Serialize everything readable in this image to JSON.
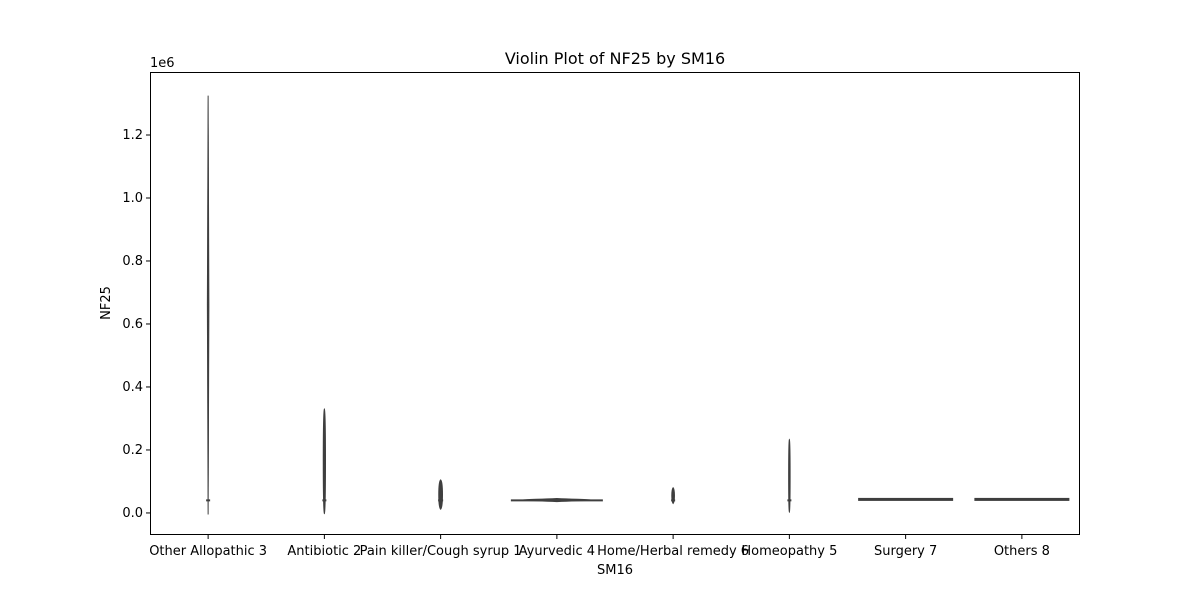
{
  "chart_data": {
    "type": "violin",
    "title": "Violin Plot of NF25 by SM16",
    "xlabel": "SM16",
    "ylabel": "NF25",
    "y_offset_label": "1e6",
    "y_scale_factor": 1000000,
    "ylim": [
      -0.07,
      1.4
    ],
    "yticks": [
      0.0,
      0.2,
      0.4,
      0.6,
      0.8,
      1.0,
      1.2
    ],
    "ytick_labels": [
      "0.0",
      "0.2",
      "0.4",
      "0.6",
      "0.8",
      "1.0",
      "1.2"
    ],
    "grid": false,
    "legend": "none",
    "categories": [
      "Other Allopathic 3",
      "Antibiotic 2",
      "Pain killer/Cough syrup 1",
      "Ayurvedic 4",
      "Home/Herbal remedy 6",
      "Homeopathy 5",
      "Surgery 7",
      "Others 8"
    ],
    "violins": [
      {
        "category": "Other Allopathic 3",
        "min": -0.005,
        "max": 1.325,
        "median": 0.04,
        "max_halfwidth": 1
      },
      {
        "category": "Antibiotic 2",
        "min": -0.002,
        "max": 0.33,
        "median": 0.04,
        "max_halfwidth": 1.5
      },
      {
        "category": "Pain killer/Cough syrup 1",
        "min": 0.012,
        "max": 0.105,
        "median": 0.04,
        "max_halfwidth": 2.5
      },
      {
        "category": "Ayurvedic 4",
        "min": 0.036,
        "max": 0.046,
        "median": 0.04,
        "max_halfwidth": 46
      },
      {
        "category": "Home/Herbal remedy 6",
        "min": 0.03,
        "max": 0.08,
        "median": 0.04,
        "max_halfwidth": 1.8
      },
      {
        "category": "Homeopathy 5",
        "min": 0.003,
        "max": 0.233,
        "median": 0.04,
        "max_halfwidth": 1
      },
      {
        "category": "Surgery 7",
        "min": 0.043,
        "max": 0.043,
        "median": 0.043,
        "max_halfwidth": 47
      },
      {
        "category": "Others 8",
        "min": 0.043,
        "max": 0.043,
        "median": 0.043,
        "max_halfwidth": 47
      }
    ],
    "colors": {
      "violin_edge": "#3f3f3f",
      "axes": "#000000",
      "background": "#ffffff"
    }
  }
}
